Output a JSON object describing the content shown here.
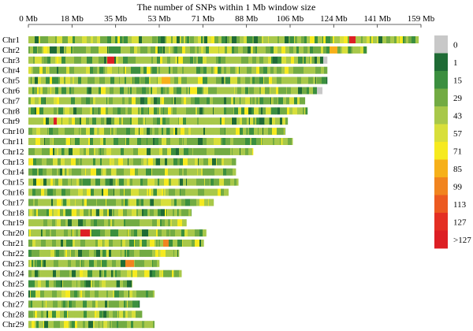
{
  "chart_data": {
    "type": "heatmap",
    "title": "The number of SNPs within 1 Mb window size",
    "x_ticks": [
      "0 Mb",
      "18 Mb",
      "35 Mb",
      "53 Mb",
      "71 Mb",
      "88 Mb",
      "106 Mb",
      "124 Mb",
      "141 Mb",
      "159 Mb"
    ],
    "xlim": [
      0,
      159
    ],
    "x_unit": "Mb",
    "chromosomes": [
      {
        "name": "Chr1",
        "length": 158
      },
      {
        "name": "Chr2",
        "length": 137
      },
      {
        "name": "Chr3",
        "length": 121
      },
      {
        "name": "Chr4",
        "length": 121
      },
      {
        "name": "Chr5",
        "length": 121
      },
      {
        "name": "Chr6",
        "length": 119
      },
      {
        "name": "Chr7",
        "length": 112
      },
      {
        "name": "Chr8",
        "length": 113
      },
      {
        "name": "Chr9",
        "length": 105
      },
      {
        "name": "Chr10",
        "length": 104
      },
      {
        "name": "Chr11",
        "length": 107
      },
      {
        "name": "Chr12",
        "length": 91
      },
      {
        "name": "Chr13",
        "length": 84
      },
      {
        "name": "Chr14",
        "length": 84
      },
      {
        "name": "Chr15",
        "length": 85
      },
      {
        "name": "Chr16",
        "length": 81
      },
      {
        "name": "Chr17",
        "length": 75
      },
      {
        "name": "Chr18",
        "length": 66
      },
      {
        "name": "Chr19",
        "length": 64
      },
      {
        "name": "Chr20",
        "length": 72
      },
      {
        "name": "Chr21",
        "length": 71
      },
      {
        "name": "Chr22",
        "length": 61
      },
      {
        "name": "Chr23",
        "length": 53
      },
      {
        "name": "Chr24",
        "length": 62
      },
      {
        "name": "Chr25",
        "length": 42
      },
      {
        "name": "Chr26",
        "length": 51
      },
      {
        "name": "Chr27",
        "length": 45
      },
      {
        "name": "Chr28",
        "length": 46
      },
      {
        "name": "Chr29",
        "length": 51
      }
    ],
    "legend": {
      "labels": [
        "0",
        "1",
        "15",
        "29",
        "43",
        "57",
        "71",
        "85",
        "99",
        "113",
        "127",
        ">127"
      ],
      "colors": [
        "#c8c8c8",
        "#1f6b35",
        "#3b8f3f",
        "#72ab43",
        "#a8c84a",
        "#d8df3a",
        "#f6ea1f",
        "#f6b01a",
        "#f1841f",
        "#ec5a21",
        "#e42f23",
        "#dd1f24"
      ]
    },
    "highlights": [
      {
        "chromosome": "Chr1",
        "position_mb": 131,
        "label": ">127"
      },
      {
        "chromosome": "Chr2",
        "position_mb": 123,
        "label": "85"
      },
      {
        "chromosome": "Chr3",
        "position_mb": 33,
        "label": ">127"
      },
      {
        "chromosome": "Chr3",
        "position_mb": 120,
        "label": "0"
      },
      {
        "chromosome": "Chr5",
        "position_mb": 55,
        "label": "85"
      },
      {
        "chromosome": "Chr6",
        "position_mb": 118,
        "label": "0"
      },
      {
        "chromosome": "Chr9",
        "position_mb": 10,
        "label": ">127"
      },
      {
        "chromosome": "Chr20",
        "position_mb": 22,
        "label": ">127"
      },
      {
        "chromosome": "Chr21",
        "position_mb": 55,
        "label": "99"
      },
      {
        "chromosome": "Chr23",
        "position_mb": 40,
        "label": "99"
      }
    ],
    "grid": false,
    "legend_position": "right"
  }
}
